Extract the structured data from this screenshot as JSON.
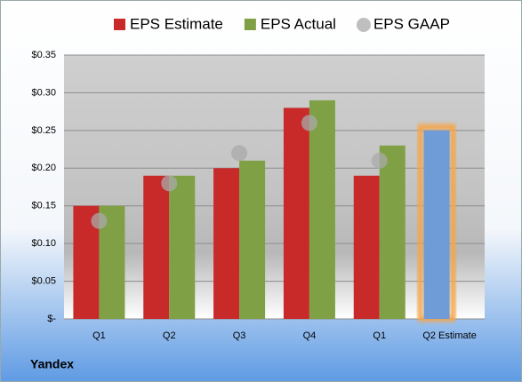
{
  "chart_data": {
    "type": "bar",
    "title": "Yandex",
    "categories": [
      "Q1",
      "Q2",
      "Q3",
      "Q4",
      "Q1",
      "Q2 Estimate"
    ],
    "series": [
      {
        "name": "EPS Estimate",
        "color": "#c82a2a",
        "values": [
          0.15,
          0.19,
          0.2,
          0.28,
          0.19,
          0.25
        ],
        "highlight": {
          "index": 5,
          "color": "#6f9bd6",
          "glow": "#f5a54a"
        }
      },
      {
        "name": "EPS Actual",
        "color": "#80a046",
        "values": [
          0.15,
          0.19,
          0.21,
          0.29,
          0.23,
          null
        ]
      },
      {
        "name": "EPS GAAP",
        "color": "#a9a9a9",
        "marker": "circle",
        "values": [
          0.13,
          0.18,
          0.22,
          0.26,
          0.21,
          null
        ]
      }
    ],
    "ylim": [
      0,
      0.35
    ],
    "yticks": [
      {
        "value": 0,
        "label": "$-"
      },
      {
        "value": 0.05,
        "label": "$0.05"
      },
      {
        "value": 0.1,
        "label": "$0.10"
      },
      {
        "value": 0.15,
        "label": "$0.15"
      },
      {
        "value": 0.2,
        "label": "$0.20"
      },
      {
        "value": 0.25,
        "label": "$0.25"
      },
      {
        "value": 0.3,
        "label": "$0.30"
      },
      {
        "value": 0.35,
        "label": "$0.35"
      }
    ],
    "grid": true,
    "legend": "top"
  }
}
